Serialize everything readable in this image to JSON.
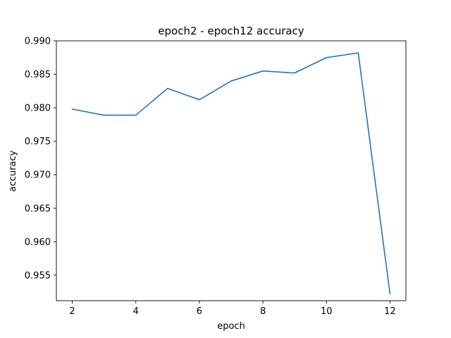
{
  "chart_data": {
    "type": "line",
    "title": "epoch2 - epoch12 accuracy",
    "xlabel": "epoch",
    "ylabel": "accuracy",
    "xlim": [
      1.5,
      12.5
    ],
    "ylim": [
      0.9512,
      0.99
    ],
    "x_ticks": [
      2,
      4,
      6,
      8,
      10,
      12
    ],
    "x_tick_labels": [
      "2",
      "4",
      "6",
      "8",
      "10",
      "12"
    ],
    "y_ticks": [
      0.955,
      0.96,
      0.965,
      0.97,
      0.975,
      0.98,
      0.985,
      0.99
    ],
    "y_tick_labels": [
      "0.955",
      "0.960",
      "0.965",
      "0.970",
      "0.975",
      "0.980",
      "0.985",
      "0.990"
    ],
    "grid": false,
    "series": [
      {
        "color": "#1f77b4",
        "x": [
          2,
          3,
          4,
          5,
          6,
          7,
          8,
          9,
          10,
          11,
          12
        ],
        "y": [
          0.9798,
          0.9789,
          0.9789,
          0.9829,
          0.9812,
          0.984,
          0.9855,
          0.9852,
          0.9875,
          0.9882,
          0.9522
        ]
      }
    ]
  }
}
